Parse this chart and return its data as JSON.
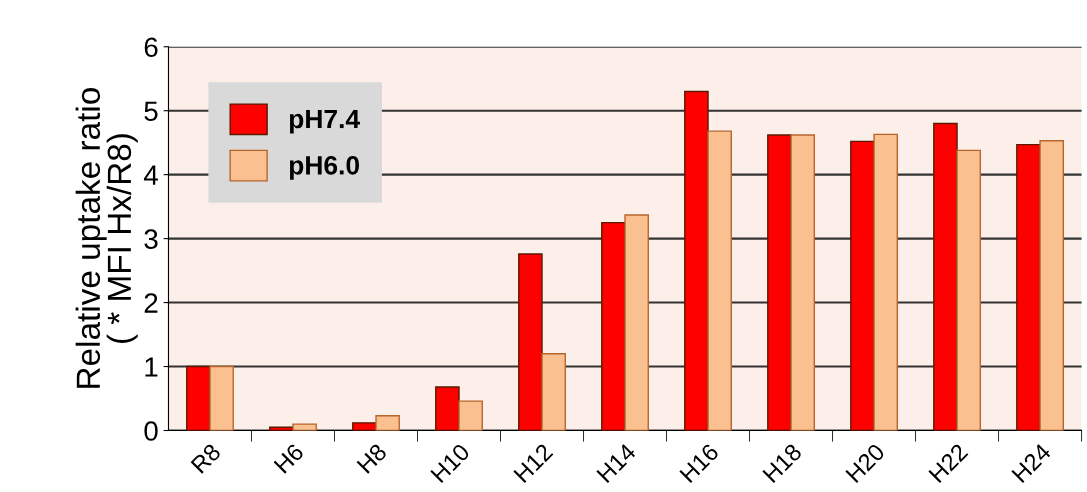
{
  "chart_data": {
    "type": "bar",
    "ylabel": "Relative uptake ratio\n( * MFI Hx/R8)",
    "categories": [
      "R8",
      "H6",
      "H8",
      "H10",
      "H12",
      "H14",
      "H16",
      "H18",
      "H20",
      "H22",
      "H24"
    ],
    "series": [
      {
        "name": "pH7.4",
        "color": "#ff0000",
        "values": [
          1.0,
          0.05,
          0.12,
          0.68,
          2.76,
          3.25,
          5.3,
          4.62,
          4.52,
          4.8,
          4.47
        ]
      },
      {
        "name": "pH6.0",
        "color": "#fac090",
        "values": [
          1.0,
          0.1,
          0.23,
          0.46,
          1.2,
          3.37,
          4.68,
          4.62,
          4.63,
          4.38,
          4.53
        ]
      }
    ],
    "ylim": [
      0,
      6
    ],
    "yticks": [
      0,
      1,
      2,
      3,
      4,
      5,
      6
    ],
    "grid": "y",
    "legend": "top left"
  }
}
